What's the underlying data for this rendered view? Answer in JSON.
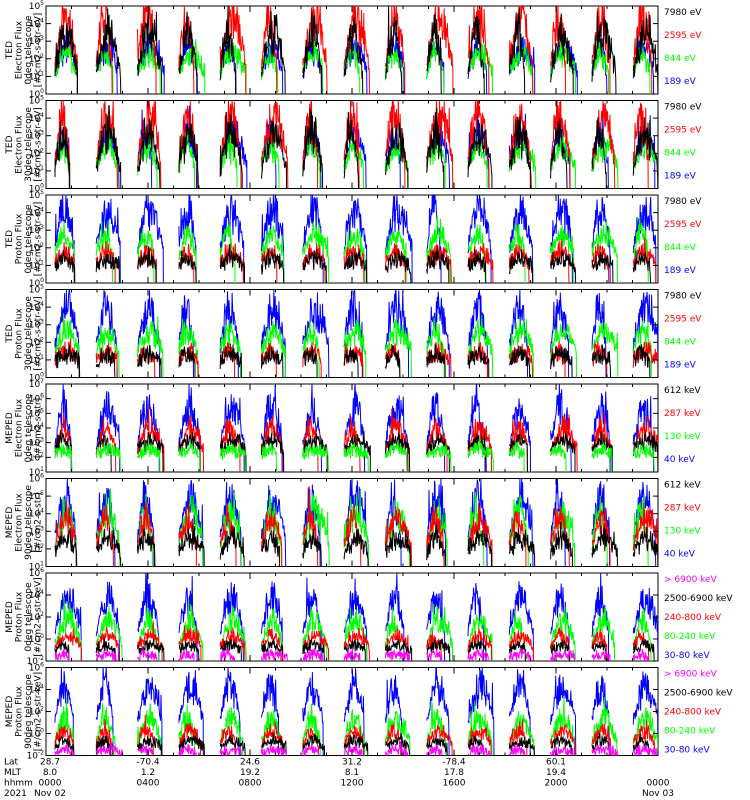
{
  "colors": {
    "black": "#000000",
    "red": "#ff0000",
    "green": "#00ff00",
    "blue": "#0000ff",
    "magenta": "#ff00ff"
  },
  "chart_data": {
    "type": "line",
    "x_range_hours": [
      0,
      24
    ],
    "panels": [
      {
        "instrument": "TED",
        "ylabel": [
          "TED",
          "Electron Flux",
          "0deg telescope",
          "[#/cm2-s-str-eV]"
        ],
        "ylim_exp": [
          0,
          5
        ],
        "tick_exps": [
          0,
          1,
          2,
          3,
          4,
          5
        ],
        "legend": [
          {
            "label": "7980 eV",
            "color": "#000000"
          },
          {
            "label": "2595 eV",
            "color": "#ff0000"
          },
          {
            "label": "844 eV",
            "color": "#00ff00"
          },
          {
            "label": "189 eV",
            "color": "#0000ff"
          }
        ],
        "series_order": [
          "#0000ff",
          "#00ff00",
          "#ff0000",
          "#000000"
        ],
        "series_level_exp": [
          1.3,
          1.2,
          1.6,
          1.1
        ],
        "series_spike_exp": [
          1.6,
          1.4,
          3.4,
          3.0
        ]
      },
      {
        "instrument": "TED",
        "ylabel": [
          "TED",
          "Electron Flux",
          "30deg telescope",
          "[#/cm2-s-str-eV]"
        ],
        "ylim_exp": [
          0,
          5
        ],
        "tick_exps": [
          0,
          1,
          2,
          3,
          4,
          5
        ],
        "legend": [
          {
            "label": "7980 eV",
            "color": "#000000"
          },
          {
            "label": "2595 eV",
            "color": "#ff0000"
          },
          {
            "label": "844 eV",
            "color": "#00ff00"
          },
          {
            "label": "189 eV",
            "color": "#0000ff"
          }
        ],
        "series_order": [
          "#0000ff",
          "#00ff00",
          "#ff0000",
          "#000000"
        ],
        "series_level_exp": [
          1.4,
          1.2,
          1.5,
          1.0
        ],
        "series_spike_exp": [
          2.0,
          1.5,
          3.2,
          2.6
        ]
      },
      {
        "instrument": "TED",
        "ylabel": [
          "TED",
          "Proton Flux",
          "0deg telescope",
          "[#/cm2-s-str-eV]"
        ],
        "ylim_exp": [
          0,
          5
        ],
        "tick_exps": [
          0,
          1,
          2,
          3,
          4,
          5
        ],
        "legend": [
          {
            "label": "7980 eV",
            "color": "#000000"
          },
          {
            "label": "2595 eV",
            "color": "#ff0000"
          },
          {
            "label": "844 eV",
            "color": "#00ff00"
          },
          {
            "label": "189 eV",
            "color": "#0000ff"
          }
        ],
        "series_order": [
          "#0000ff",
          "#00ff00",
          "#ff0000",
          "#000000"
        ],
        "series_level_exp": [
          2.0,
          1.6,
          1.1,
          0.9
        ],
        "series_spike_exp": [
          2.6,
          1.4,
          0.8,
          0.6
        ]
      },
      {
        "instrument": "TED",
        "ylabel": [
          "TED",
          "Proton Flux",
          "30deg telescope",
          "[#/cm2-s-str-eV]"
        ],
        "ylim_exp": [
          0,
          5
        ],
        "tick_exps": [
          0,
          1,
          2,
          3,
          4,
          5
        ],
        "legend": [
          {
            "label": "7980 eV",
            "color": "#000000"
          },
          {
            "label": "2595 eV",
            "color": "#ff0000"
          },
          {
            "label": "844 eV",
            "color": "#00ff00"
          },
          {
            "label": "189 eV",
            "color": "#0000ff"
          }
        ],
        "series_order": [
          "#0000ff",
          "#00ff00",
          "#ff0000",
          "#000000"
        ],
        "series_level_exp": [
          1.8,
          1.5,
          1.0,
          0.9
        ],
        "series_spike_exp": [
          2.6,
          1.3,
          0.6,
          0.5
        ]
      },
      {
        "instrument": "MEPED",
        "ylabel": [
          "MEPED",
          "Electron Flux",
          "0deg telescope",
          "[#/cm2-s-str]"
        ],
        "ylim_exp": [
          1,
          7
        ],
        "tick_exps": [
          1,
          2,
          3,
          4,
          5,
          6,
          7
        ],
        "legend": [
          {
            "label": "612 keV",
            "color": "#000000"
          },
          {
            "label": "287 keV",
            "color": "#ff0000"
          },
          {
            "label": "130 keV",
            "color": "#00ff00"
          },
          {
            "label": "40 keV",
            "color": "#0000ff"
          }
        ],
        "series_order": [
          "#0000ff",
          "#ff0000",
          "#000000",
          "#00ff00"
        ],
        "series_level_exp": [
          2.9,
          2.5,
          2.5,
          2.2
        ],
        "series_spike_exp": [
          3.0,
          1.8,
          0.8,
          0.4
        ]
      },
      {
        "instrument": "MEPED",
        "ylabel": [
          "MEPED",
          "Electron Flux",
          "90deg telescope",
          "[#/cm2-s-str]"
        ],
        "ylim_exp": [
          1,
          6
        ],
        "tick_exps": [
          1,
          2,
          3,
          4,
          5,
          6
        ],
        "legend": [
          {
            "label": "612 keV",
            "color": "#000000"
          },
          {
            "label": "287 keV",
            "color": "#ff0000"
          },
          {
            "label": "130 keV",
            "color": "#00ff00"
          },
          {
            "label": "40 keV",
            "color": "#0000ff"
          }
        ],
        "series_order": [
          "#0000ff",
          "#00ff00",
          "#ff0000",
          "#000000"
        ],
        "series_level_exp": [
          2.6,
          2.2,
          2.1,
          1.8
        ],
        "series_spike_exp": [
          2.8,
          2.3,
          2.0,
          1.0
        ]
      },
      {
        "instrument": "MEPED",
        "ylabel": [
          "MEPED",
          "Proton Flux",
          "0deg telescope",
          "[#/cm2-s-str-keV]"
        ],
        "ylim_exp": [
          -2,
          6
        ],
        "tick_exps": [
          -2,
          0,
          2,
          4,
          6
        ],
        "legend": [
          {
            "label": "> 6900 keV",
            "color": "#ff00ff"
          },
          {
            "label": "2500-6900 keV",
            "color": "#000000"
          },
          {
            "label": "240-800 keV",
            "color": "#ff0000"
          },
          {
            "label": "80-240 keV",
            "color": "#00ff00"
          },
          {
            "label": "30-80 keV",
            "color": "#0000ff"
          }
        ],
        "series_order": [
          "#0000ff",
          "#00ff00",
          "#ff0000",
          "#000000",
          "#ff00ff"
        ],
        "series_level_exp": [
          0.6,
          -0.6,
          -0.7,
          -1.0,
          -1.7
        ],
        "series_spike_exp": [
          3.8,
          2.8,
          1.2,
          0.6,
          0.4
        ]
      },
      {
        "instrument": "MEPED",
        "ylabel": [
          "MEPED",
          "Proton Flux",
          "90deg telescope",
          "[#/cm2-s-str-keV]"
        ],
        "ylim_exp": [
          -2,
          6
        ],
        "tick_exps": [
          -2,
          0,
          2,
          4,
          6
        ],
        "legend": [
          {
            "label": "> 6900 keV",
            "color": "#ff00ff"
          },
          {
            "label": "2500-6900 keV",
            "color": "#000000"
          },
          {
            "label": "240-800 keV",
            "color": "#ff0000"
          },
          {
            "label": "80-240 keV",
            "color": "#00ff00"
          },
          {
            "label": "30-80 keV",
            "color": "#0000ff"
          }
        ],
        "series_order": [
          "#0000ff",
          "#00ff00",
          "#ff0000",
          "#000000",
          "#ff00ff"
        ],
        "series_level_exp": [
          1.2,
          -0.8,
          -1.0,
          -1.3,
          -1.8
        ],
        "series_spike_exp": [
          3.8,
          2.6,
          1.6,
          0.8,
          0.4
        ]
      }
    ],
    "time_axis": {
      "row_labels": [
        "Lat",
        "MLT",
        "hhmm",
        "2021"
      ],
      "columns": [
        {
          "hour": 0,
          "lat": "28.7",
          "mlt": "8.0",
          "hhmm": "0000",
          "date": "Nov 02"
        },
        {
          "hour": 4,
          "lat": "-70.4",
          "mlt": "1.2",
          "hhmm": "0400",
          "date": ""
        },
        {
          "hour": 8,
          "lat": "24.6",
          "mlt": "19.2",
          "hhmm": "0800",
          "date": ""
        },
        {
          "hour": 12,
          "lat": "31.2",
          "mlt": "8.1",
          "hhmm": "1200",
          "date": ""
        },
        {
          "hour": 16,
          "lat": "-78.4",
          "mlt": "17.8",
          "hhmm": "1600",
          "date": ""
        },
        {
          "hour": 20,
          "lat": "60.1",
          "mlt": "19.4",
          "hhmm": "2000",
          "date": ""
        },
        {
          "hour": 24,
          "lat": "",
          "mlt": "",
          "hhmm": "0000",
          "date": "Nov 03"
        }
      ]
    }
  }
}
